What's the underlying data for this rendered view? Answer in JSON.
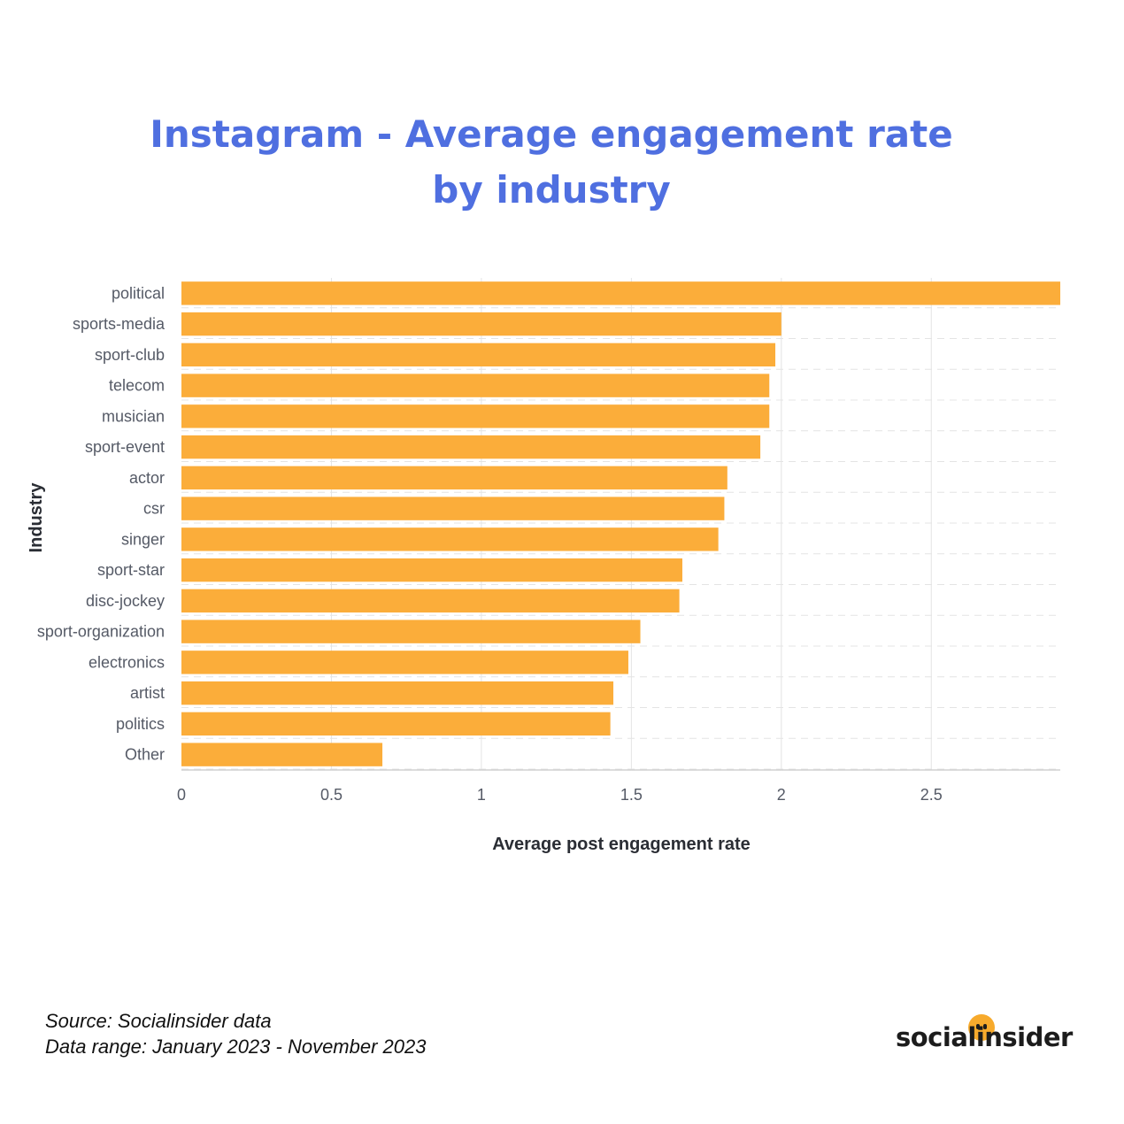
{
  "header": {
    "title_line1": "Instagram - Average engagement rate",
    "title_line2": "by industry"
  },
  "colors": {
    "bar": "#fbad3a",
    "title": "#4f6fe0",
    "grid": "#e4e4e4",
    "axis": "#d0d0d0"
  },
  "chart_data": {
    "type": "bar",
    "orientation": "horizontal",
    "title": "Instagram - Average engagement rate by industry",
    "xlabel": "Average post engagement rate",
    "ylabel": "Industry",
    "xlim": [
      0,
      2.93
    ],
    "xticks": [
      0,
      0.5,
      1,
      1.5,
      2,
      2.5
    ],
    "xtick_labels": [
      "0",
      "0.5",
      "1",
      "1.5",
      "2",
      "2.5"
    ],
    "grid": "dashed-vertical-and-horizontal",
    "categories": [
      "political",
      "sports-media",
      "sport-club",
      "telecom",
      "musician",
      "sport-event",
      "actor",
      "csr",
      "singer",
      "sport-star",
      "disc-jockey",
      "sport-organization",
      "electronics",
      "artist",
      "politics",
      "Other"
    ],
    "values": [
      2.93,
      2.0,
      1.98,
      1.96,
      1.96,
      1.93,
      1.82,
      1.81,
      1.79,
      1.67,
      1.66,
      1.53,
      1.49,
      1.44,
      1.43,
      0.67
    ]
  },
  "footer": {
    "source": "Source: Socialinsider data",
    "range": "Data range: January 2023 - November 2023",
    "logo_text": "socialinsider"
  }
}
